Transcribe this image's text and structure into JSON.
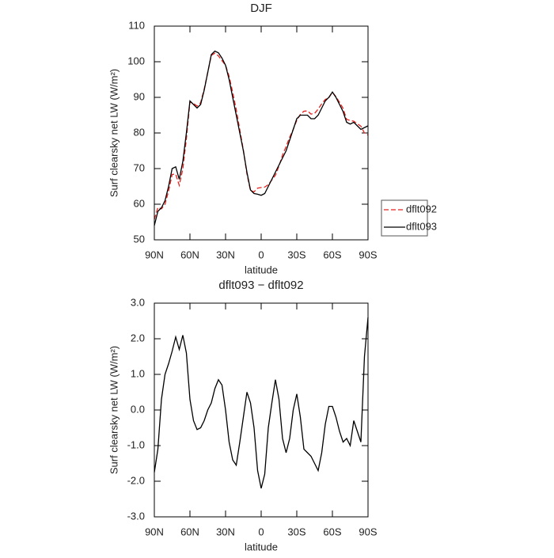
{
  "chart_data": [
    {
      "type": "line",
      "title": "DJF",
      "x_label": "latitude",
      "y_label": "Surf clearsky net LW (W/m²)",
      "x": [
        90,
        87,
        84,
        81,
        78,
        75,
        72,
        69,
        66,
        63,
        60,
        57,
        54,
        51,
        48,
        45,
        42,
        39,
        36,
        33,
        30,
        27,
        24,
        21,
        18,
        15,
        12,
        9,
        6,
        3,
        0,
        -3,
        -6,
        -9,
        -12,
        -15,
        -18,
        -21,
        -24,
        -27,
        -30,
        -33,
        -36,
        -39,
        -42,
        -45,
        -48,
        -51,
        -54,
        -57,
        -60,
        -63,
        -66,
        -69,
        -72,
        -75,
        -78,
        -81,
        -84,
        -87,
        -90
      ],
      "series": [
        {
          "name": "dflt092",
          "color": "#e8231f",
          "style": "dashed",
          "values": [
            55.75,
            59.1,
            58.7,
            60,
            63.7,
            68.35,
            68.45,
            65.3,
            69.9,
            78.4,
            88.7,
            88.3,
            87.55,
            88.5,
            92.3,
            97,
            101.8,
            102.4,
            101.65,
            100.3,
            99,
            95.9,
            91.4,
            86.55,
            80.9,
            75.2,
            68.5,
            63.8,
            63.5,
            64.5,
            64.7,
            64.8,
            65.5,
            66.8,
            68.15,
            70.7,
            73.8,
            76.2,
            78.8,
            81,
            83.55,
            85.2,
            86.1,
            86.2,
            85.3,
            85.5,
            86.7,
            88.2,
            89.4,
            89.9,
            91.4,
            90.2,
            88.6,
            86.9,
            83.8,
            83.5,
            83.3,
            82.6,
            81.9,
            80,
            79.4
          ]
        },
        {
          "name": "dflt093",
          "color": "#000000",
          "style": "solid",
          "values": [
            54,
            58,
            59,
            61,
            65,
            70,
            70.5,
            67,
            72,
            80,
            89,
            88,
            87,
            88,
            92,
            97,
            102,
            103,
            102.5,
            101,
            99,
            95,
            90,
            85,
            80,
            75,
            69,
            64,
            63,
            62.8,
            62.5,
            63,
            65,
            67,
            69,
            71,
            73,
            75,
            78,
            81,
            84,
            85,
            85,
            85,
            84,
            84,
            85,
            87,
            89,
            90,
            91.5,
            90,
            88,
            86,
            83,
            82.5,
            83,
            82,
            81,
            81.5,
            82
          ]
        }
      ],
      "xlim": [
        90,
        -90
      ],
      "xticks": [
        {
          "value": 90,
          "label": "90N"
        },
        {
          "value": 60,
          "label": "60N"
        },
        {
          "value": 30,
          "label": "30N"
        },
        0,
        {
          "value": -30,
          "label": "30S"
        },
        {
          "value": -60,
          "label": "60S"
        },
        {
          "value": -90,
          "label": "90S"
        }
      ],
      "ylim": [
        50,
        110
      ],
      "yticks": [
        50,
        60,
        70,
        80,
        90,
        100,
        110
      ],
      "legend": "right"
    },
    {
      "type": "line",
      "title": "dflt093 − dflt092",
      "x_label": "latitude",
      "y_label": "Surf clearsky net LW (W/m²)",
      "x": [
        90,
        87,
        84,
        81,
        78,
        75,
        72,
        69,
        66,
        63,
        60,
        57,
        54,
        51,
        48,
        45,
        42,
        39,
        36,
        33,
        30,
        27,
        24,
        21,
        18,
        15,
        12,
        9,
        6,
        3,
        0,
        -3,
        -6,
        -9,
        -12,
        -15,
        -18,
        -21,
        -24,
        -27,
        -30,
        -33,
        -36,
        -39,
        -42,
        -45,
        -48,
        -51,
        -54,
        -57,
        -60,
        -63,
        -66,
        -69,
        -72,
        -75,
        -78,
        -81,
        -84,
        -87,
        -90
      ],
      "series": [
        {
          "color": "#000000",
          "style": "solid",
          "values": [
            -1.75,
            -1.1,
            0.3,
            1.0,
            1.3,
            1.65,
            2.05,
            1.7,
            2.1,
            1.6,
            0.3,
            -0.3,
            -0.55,
            -0.5,
            -0.3,
            0.0,
            0.2,
            0.6,
            0.85,
            0.7,
            0.0,
            -0.9,
            -1.4,
            -1.55,
            -0.9,
            -0.2,
            0.5,
            0.2,
            -0.5,
            -1.7,
            -2.2,
            -1.8,
            -0.5,
            0.2,
            0.85,
            0.3,
            -0.8,
            -1.2,
            -0.8,
            0.0,
            0.45,
            -0.2,
            -1.1,
            -1.2,
            -1.3,
            -1.5,
            -1.7,
            -1.2,
            -0.4,
            0.1,
            0.1,
            -0.2,
            -0.6,
            -0.9,
            -0.8,
            -1.0,
            -0.3,
            -0.6,
            -0.9,
            1.5,
            2.6
          ]
        }
      ],
      "xlim": [
        90,
        -90
      ],
      "xticks": [
        {
          "value": 90,
          "label": "90N"
        },
        {
          "value": 60,
          "label": "60N"
        },
        {
          "value": 30,
          "label": "30N"
        },
        0,
        {
          "value": -30,
          "label": "30S"
        },
        {
          "value": -60,
          "label": "60S"
        },
        {
          "value": -90,
          "label": "90S"
        }
      ],
      "ylim": [
        -3,
        3
      ],
      "yticks": [
        {
          "value": -3,
          "label": "-3.0"
        },
        {
          "value": -2,
          "label": "-2.0"
        },
        {
          "value": -1,
          "label": "-1.0"
        },
        {
          "value": 0,
          "label": "0.0"
        },
        {
          "value": 1,
          "label": "1.0"
        },
        {
          "value": 2,
          "label": "2.0"
        },
        {
          "value": 3,
          "label": "3.0"
        }
      ]
    }
  ]
}
